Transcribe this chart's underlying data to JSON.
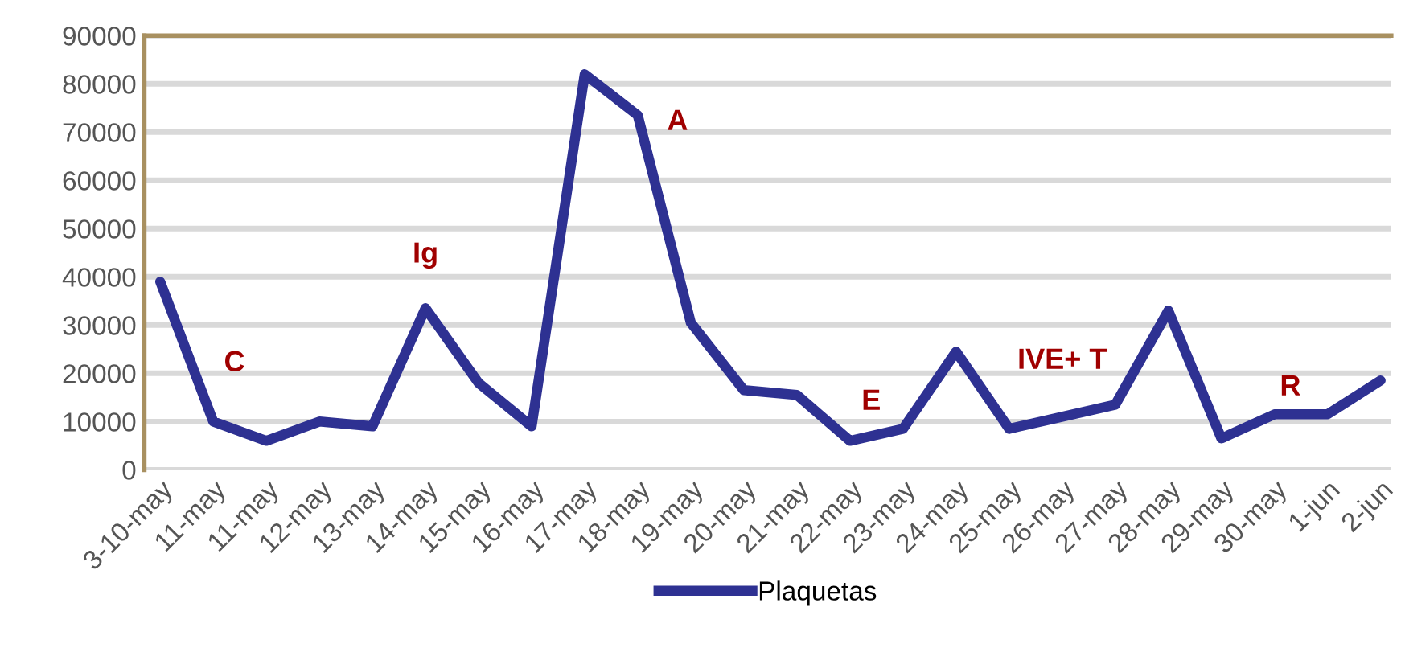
{
  "chart_data": {
    "type": "line",
    "categories": [
      "3-10-may",
      "11-may",
      "11-may",
      "12-may",
      "13-may",
      "14-may",
      "15-may",
      "16-may",
      "17-may",
      "18-may",
      "19-may",
      "20-may",
      "21-may",
      "22-may",
      "23-may",
      "24-may",
      "25-may",
      "26-may",
      "27-may",
      "28-may",
      "29-may",
      "30-may",
      "1-jun",
      "2-jun"
    ],
    "series": [
      {
        "name": "Plaquetas",
        "color": "#2e3192",
        "values": [
          39000,
          10000,
          6000,
          10000,
          9000,
          33500,
          18000,
          9000,
          82000,
          73500,
          30500,
          16500,
          15500,
          6000,
          8500,
          24500,
          8500,
          11000,
          13500,
          33000,
          6500,
          11500,
          11500,
          18500
        ]
      }
    ],
    "annotations": [
      "C",
      "Ig",
      "A",
      "E",
      "IVE+ T",
      "R"
    ],
    "ylim": [
      0,
      90000
    ],
    "yticks": [
      0,
      10000,
      20000,
      30000,
      40000,
      50000,
      60000,
      70000,
      80000,
      90000
    ],
    "grid": "y",
    "legend": "bottom",
    "marker": "none",
    "line_style": "solid"
  }
}
